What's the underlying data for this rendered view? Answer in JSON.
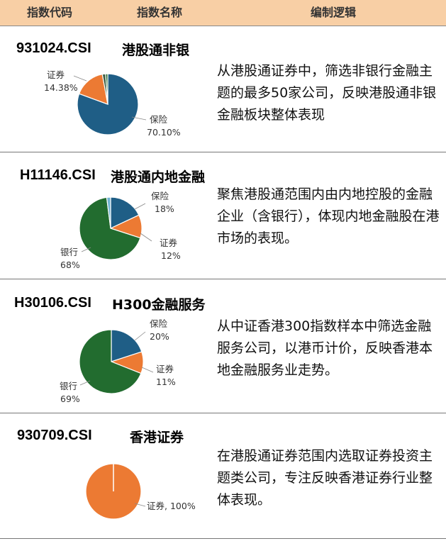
{
  "header": {
    "col_code": "指数代码",
    "col_name": "指数名称",
    "col_logic": "编制逻辑"
  },
  "colors": {
    "header_bg": "#f8cfa5",
    "blue": "#1f5e86",
    "orange": "#ec7a33",
    "green": "#226c2f",
    "cyan": "#6fb3d2"
  },
  "rows": [
    {
      "code": "931024.CSI",
      "name": "港股通非银",
      "logic": "从港股通证券中，筛选非银行金融主题的最多50家公司，反映港股通非银金融板块整体表现"
    },
    {
      "code": "H11146.CSI",
      "name": "港股通内地金融",
      "logic": "聚焦港股通范围内由内地控股的金融企业（含银行），体现内地金融股在港市场的表现。"
    },
    {
      "code": "H30106.CSI",
      "name": "H300金融服务",
      "logic": "从中证香港300指数样本中筛选金融服务公司，以港币计价，反映香港本地金融服务业走势。"
    },
    {
      "code": "930709.CSI",
      "name": "香港证券",
      "logic": "在港股通证券范围内选取证券投资主题类公司，专注反映香港证券行业整体表现。"
    }
  ],
  "chart_data": [
    {
      "type": "pie",
      "slices": [
        {
          "name": "保险",
          "label": "70.10%",
          "value": 70.1,
          "color": "#1f5e86"
        },
        {
          "name": "证券",
          "label": "14.38%",
          "value": 14.38,
          "color": "#ec7a33"
        },
        {
          "name": "",
          "label": "",
          "value": 1.5,
          "color": "#3d5f46"
        },
        {
          "name": "",
          "label": "",
          "value": 1.0,
          "color": "#226c2f"
        }
      ]
    },
    {
      "type": "pie",
      "slices": [
        {
          "name": "保险",
          "label": "18%",
          "value": 18,
          "color": "#1f5e86"
        },
        {
          "name": "证券",
          "label": "12%",
          "value": 12,
          "color": "#ec7a33"
        },
        {
          "name": "银行",
          "label": "68%",
          "value": 68,
          "color": "#226c2f"
        },
        {
          "name": "",
          "label": "",
          "value": 2,
          "color": "#6fb3d2"
        }
      ]
    },
    {
      "type": "pie",
      "slices": [
        {
          "name": "保险",
          "label": "20%",
          "value": 20,
          "color": "#1f5e86"
        },
        {
          "name": "证券",
          "label": "11%",
          "value": 11,
          "color": "#ec7a33"
        },
        {
          "name": "银行",
          "label": "69%",
          "value": 69,
          "color": "#226c2f"
        }
      ]
    },
    {
      "type": "pie",
      "slices": [
        {
          "name": "证券",
          "label": "100%",
          "value": 100,
          "color": "#ec7a33"
        }
      ]
    }
  ]
}
